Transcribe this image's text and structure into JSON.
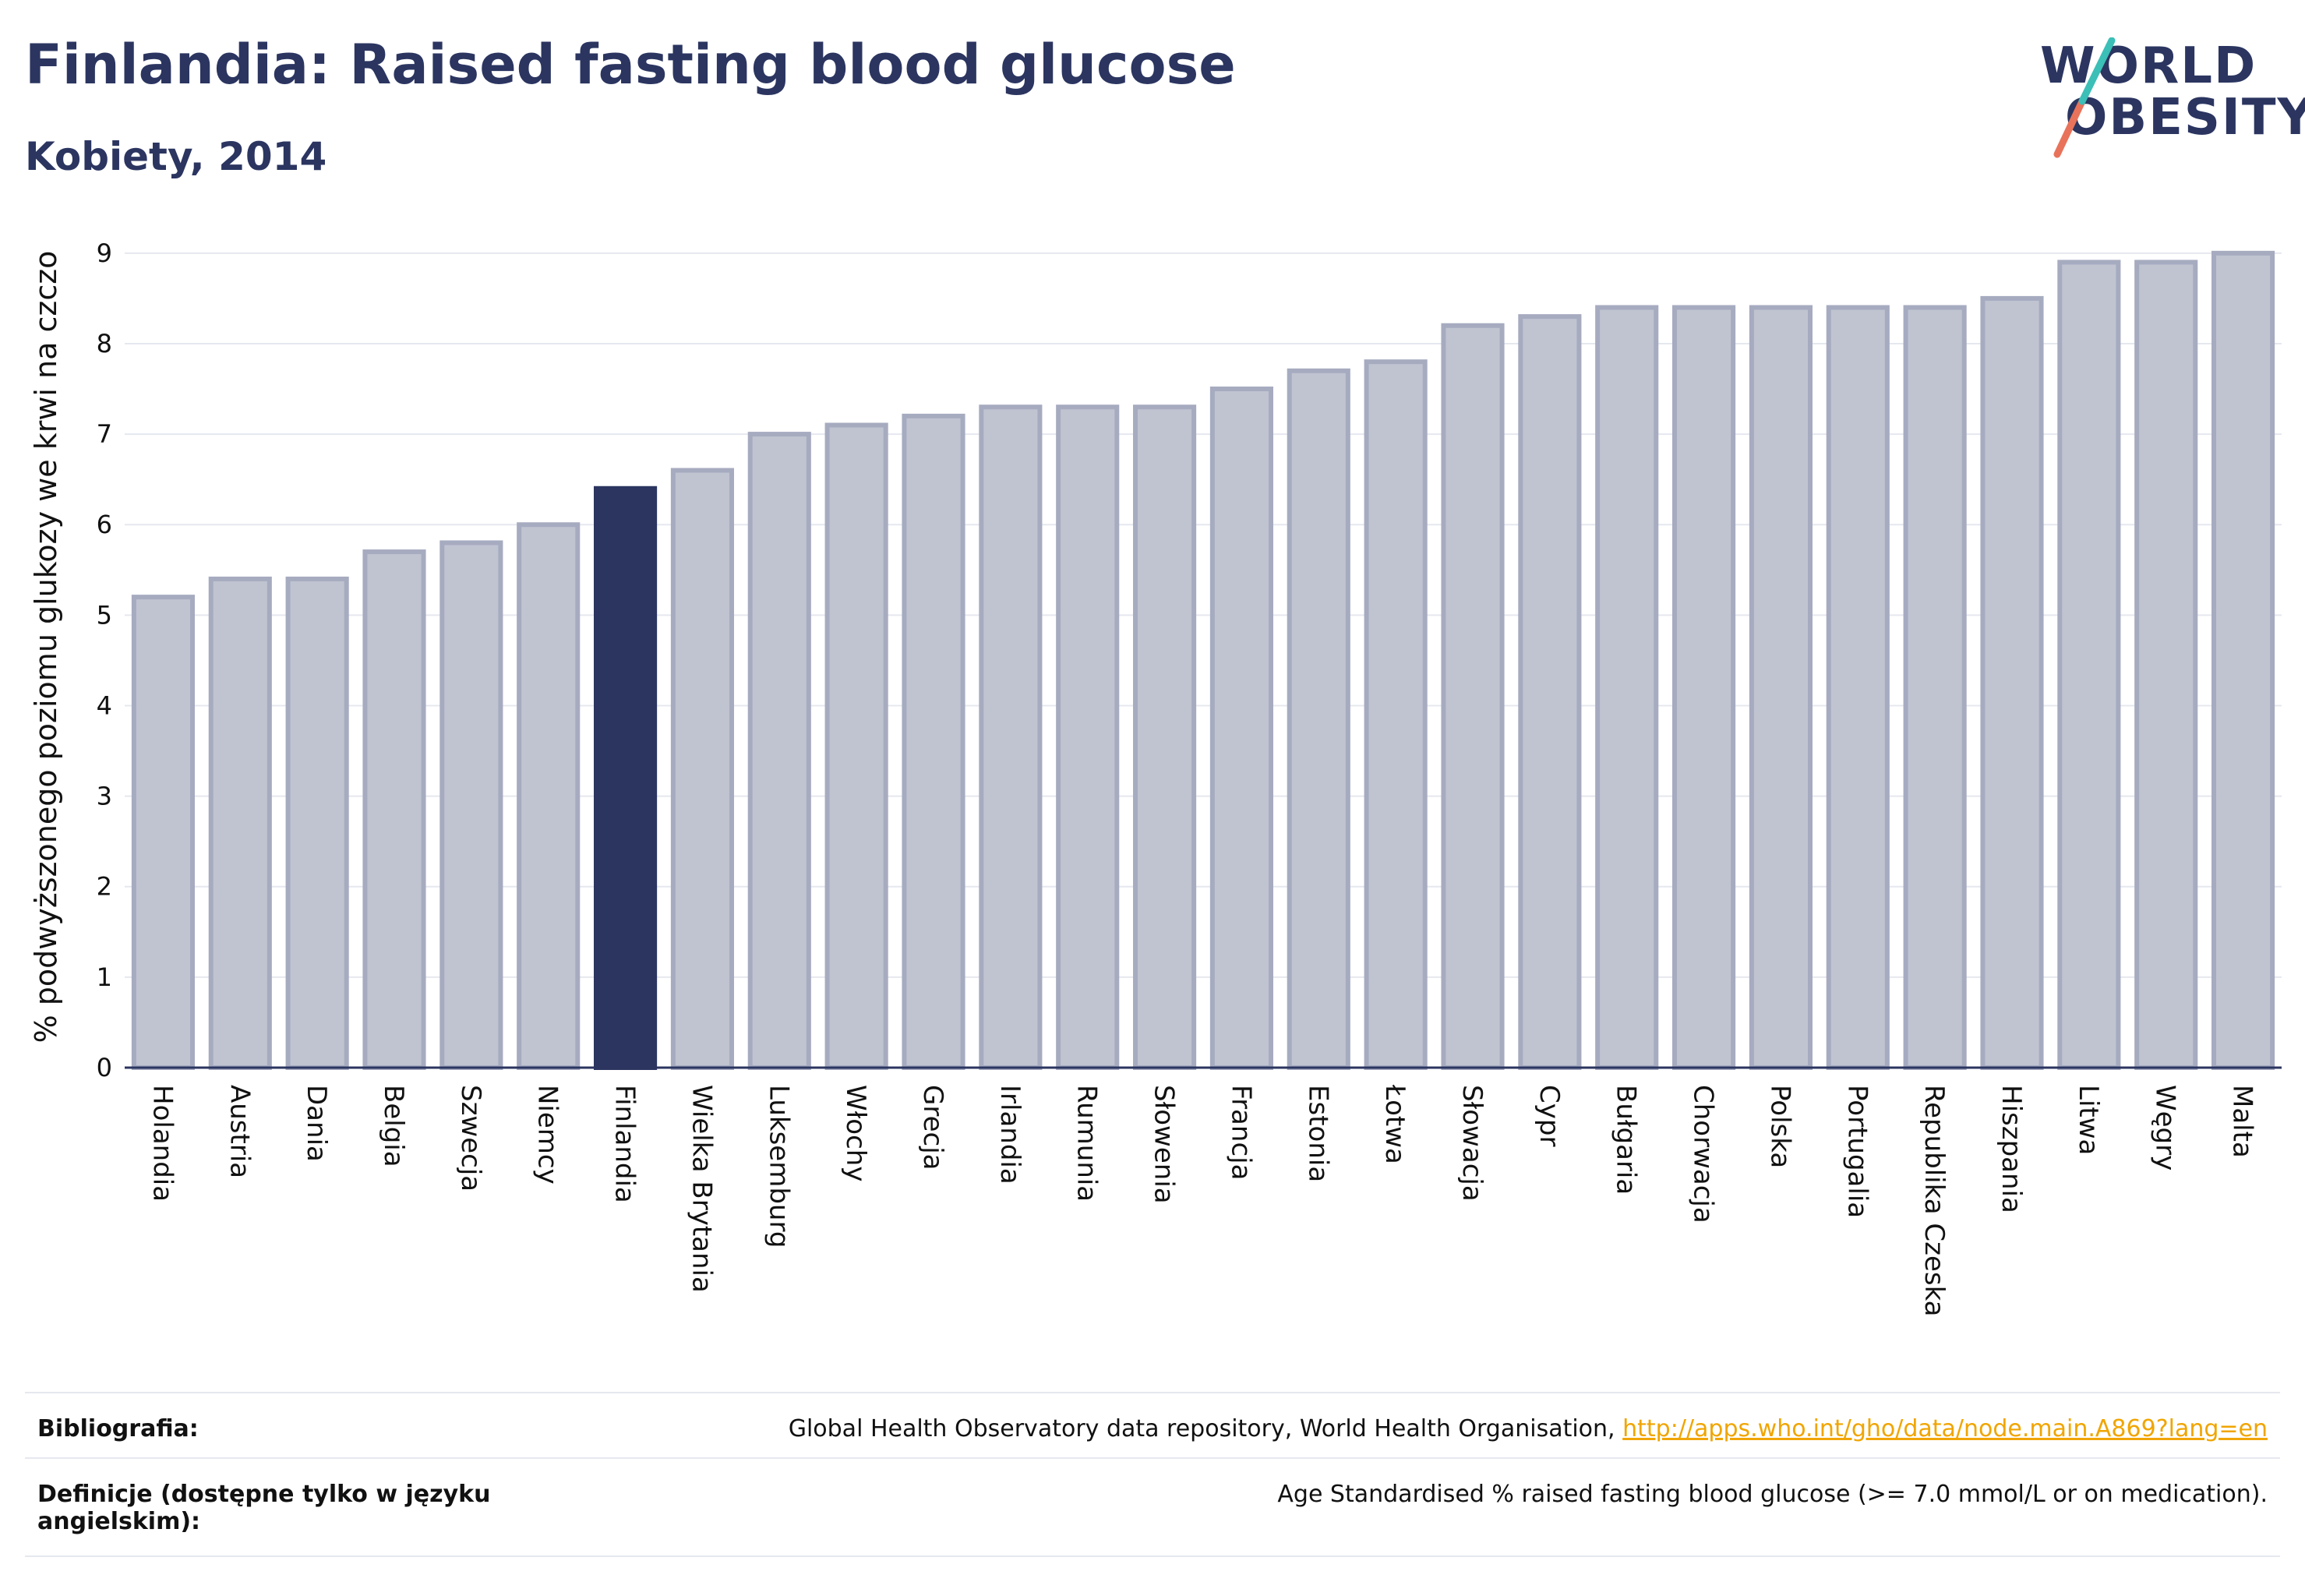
{
  "header": {
    "title": "Finlandia: Raised fasting blood glucose",
    "subtitle": "Kobiety, 2014"
  },
  "logo": {
    "line1": "WORLD",
    "line2": "OBESITY"
  },
  "chart_data": {
    "type": "bar",
    "ylabel": "% podwyższonego poziomu glukozy we krwi na czczo",
    "ylim": [
      0,
      9.3
    ],
    "yticks": [
      0,
      1,
      2,
      3,
      4,
      5,
      6,
      7,
      8,
      9
    ],
    "grid": true,
    "highlight": "Finlandia",
    "colors": {
      "bar": "#c0c4d1",
      "bar_edge": "#a6abc0",
      "highlight": "#2b3560",
      "grid": "#e6e8ef",
      "axis": "#2b3560"
    },
    "categories": [
      "Holandia",
      "Austria",
      "Dania",
      "Belgia",
      "Szwecja",
      "Niemcy",
      "Finlandia",
      "Wielka Brytania",
      "Luksemburg",
      "Włochy",
      "Grecja",
      "Irlandia",
      "Rumunia",
      "Słowenia",
      "Francja",
      "Estonia",
      "Łotwa",
      "Słowacja",
      "Cypr",
      "Bułgaria",
      "Chorwacja",
      "Polska",
      "Portugalia",
      "Republika Czeska",
      "Hiszpania",
      "Litwa",
      "Węgry",
      "Malta"
    ],
    "values": [
      5.2,
      5.4,
      5.4,
      5.7,
      5.8,
      6.0,
      6.4,
      6.6,
      7.0,
      7.1,
      7.2,
      7.3,
      7.3,
      7.3,
      7.5,
      7.7,
      7.8,
      8.2,
      8.3,
      8.4,
      8.4,
      8.4,
      8.4,
      8.4,
      8.5,
      8.9,
      8.9,
      9.0
    ]
  },
  "footer": {
    "bib_label": "Bibliografia:",
    "bib_text": "Global Health Observatory data repository, World Health Organisation,",
    "bib_link": "http://apps.who.int/gho/data/node.main.A869?lang=en",
    "def_label_1": "Definicje (dostępne tylko w języku",
    "def_label_2": "angielskim):",
    "def_text": "Age Standardised % raised fasting blood glucose (>= 7.0 mmol/L or on medication)."
  }
}
